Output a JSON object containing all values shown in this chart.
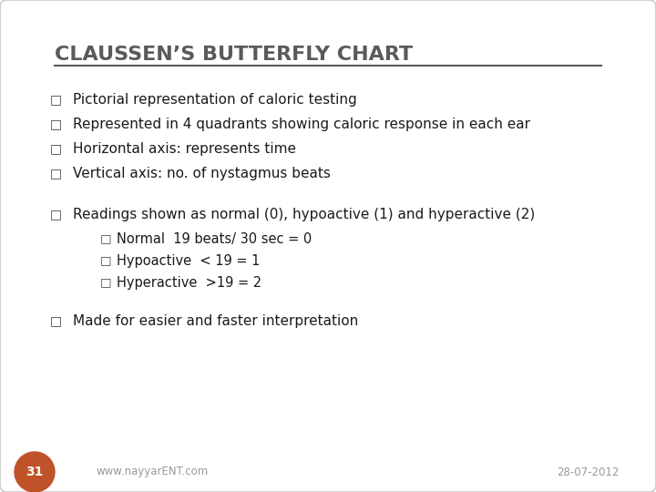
{
  "title": "CLAUSSEN’S BUTTERFLY CHART",
  "background_color": "#ffffff",
  "title_color": "#5a5a5a",
  "text_color": "#1a1a1a",
  "bullet_color": "#444444",
  "bullet_lines": [
    "Pictorial representation of caloric testing",
    "Represented in 4 quadrants showing caloric response in each ear",
    "Horizontal axis: represents time",
    "Vertical axis: no. of nystagmus beats"
  ],
  "readings_line": "Readings shown as normal (0), hypoactive (1) and hyperactive (2)",
  "sub_bullets": [
    "Normal  19 beats/ 30 sec = 0",
    "Hypoactive  < 19 = 1",
    "Hyperactive  >19 = 2"
  ],
  "last_bullet": "Made for easier and faster interpretation",
  "footer_left": "www.nayyarENT.com",
  "footer_right": "28-07-2012",
  "page_number": "31",
  "page_number_bg": "#c0522a",
  "page_number_color": "#ffffff",
  "title_fontsize": 16,
  "body_fontsize": 11,
  "sub_fontsize": 10.5,
  "footer_fontsize": 8.5
}
